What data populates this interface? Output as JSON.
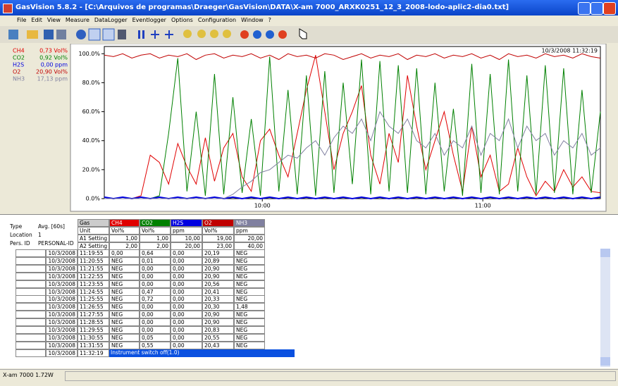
{
  "window": {
    "title": "GasVision 5.8.2 - [C:\\Arquivos de programas\\Draeger\\GasVision\\DATA\\X-am 7000_ARXK0251_12_3_2008-lodo-aplic2-dia0.txt]",
    "menu": [
      "File",
      "Edit",
      "View",
      "Measure",
      "DataLogger",
      "Eventlogger",
      "Options",
      "Configuration",
      "Window",
      "?"
    ],
    "status": "X-am 7000 1.72W"
  },
  "chart_data": {
    "type": "line",
    "timestamp": "10/3/2008 11:32:19",
    "x": [
      557,
      559.5,
      562,
      564.5,
      567,
      569.5,
      572,
      574.5,
      577,
      579.5,
      582,
      584.5,
      587,
      589.5,
      592,
      594.5,
      597,
      599.5,
      602,
      604.5,
      607,
      609.5,
      612,
      614.5,
      617,
      619.5,
      622,
      624.5,
      627,
      629.5,
      632,
      634.5,
      637,
      639.5,
      642,
      644.5,
      647,
      649.5,
      652,
      654.5,
      657,
      659.5,
      662,
      664.5,
      667,
      669.5,
      672,
      674.5,
      677,
      679.5,
      682,
      684.5,
      687,
      689.5,
      692
    ],
    "xlim": [
      557,
      692
    ],
    "xticks": [
      {
        "value": 600,
        "label": "10:00"
      },
      {
        "value": 660,
        "label": "11:00"
      }
    ],
    "ylim": [
      0,
      105
    ],
    "yticks": [
      {
        "value": 0,
        "label": "0.0%"
      },
      {
        "value": 20,
        "label": "20.0%"
      },
      {
        "value": 40,
        "label": "40.0%"
      },
      {
        "value": 60,
        "label": "60.0%"
      },
      {
        "value": 80,
        "label": "80.0%"
      },
      {
        "value": 100,
        "label": "100.0%"
      }
    ],
    "series": [
      {
        "name": "CH4",
        "reading": "0,73 Vol%",
        "color": "#e00000",
        "values": [
          0,
          0,
          0,
          0,
          2,
          30,
          25,
          10,
          38,
          22,
          10,
          42,
          12,
          35,
          45,
          15,
          5,
          40,
          48,
          30,
          15,
          45,
          75,
          99,
          60,
          20,
          45,
          60,
          78,
          30,
          10,
          45,
          25,
          85,
          50,
          20,
          40,
          60,
          30,
          5,
          50,
          15,
          30,
          5,
          10,
          35,
          15,
          2,
          12,
          5,
          20,
          8,
          15,
          5,
          4
        ]
      },
      {
        "name": "CO2",
        "reading": "0,92 Vol%",
        "color": "#008000",
        "values": [
          0,
          0,
          0,
          0,
          0,
          0,
          2,
          45,
          97,
          5,
          60,
          2,
          86,
          3,
          70,
          4,
          55,
          2,
          98,
          5,
          75,
          3,
          85,
          2,
          88,
          4,
          80,
          10,
          96,
          3,
          95,
          5,
          92,
          4,
          90,
          3,
          80,
          5,
          62,
          2,
          93,
          4,
          86,
          3,
          96,
          5,
          85,
          3,
          92,
          4,
          90,
          3,
          75,
          4,
          60
        ]
      },
      {
        "name": "H2S",
        "reading": "0,00 ppm",
        "color": "#0000e0",
        "values": [
          1,
          0,
          1,
          0,
          1,
          0,
          1,
          0,
          1,
          0,
          1,
          0,
          1,
          0,
          1,
          0,
          1,
          0,
          1,
          0,
          1,
          0,
          1,
          0,
          1,
          0,
          1,
          0,
          1,
          0,
          1,
          0,
          1,
          0,
          1,
          0,
          1,
          0,
          1,
          0,
          1,
          0,
          1,
          0,
          1,
          0,
          1,
          0,
          1,
          0,
          1,
          0,
          1,
          0,
          1
        ]
      },
      {
        "name": "O2",
        "reading": "20,90 Vol%",
        "color": "#c00000",
        "values": [
          99,
          98,
          100,
          97,
          99,
          100,
          97,
          99,
          98,
          100,
          96,
          99,
          100,
          97,
          99,
          98,
          100,
          97,
          99,
          96,
          100,
          98,
          99,
          97,
          100,
          99,
          96,
          98,
          100,
          97,
          99,
          98,
          100,
          96,
          99,
          98,
          100,
          97,
          99,
          98,
          100,
          97,
          99,
          96,
          100,
          98,
          99,
          97,
          100,
          98,
          99,
          97,
          100,
          98,
          97
        ]
      },
      {
        "name": "NH3",
        "reading": "17,13 ppm",
        "color": "#8080a0",
        "values": [
          0,
          0,
          0,
          0,
          0,
          0,
          0,
          0,
          0,
          0,
          0,
          0,
          0,
          0,
          3,
          8,
          12,
          18,
          20,
          25,
          30,
          28,
          35,
          40,
          30,
          42,
          50,
          45,
          55,
          40,
          60,
          50,
          45,
          55,
          40,
          35,
          45,
          30,
          40,
          35,
          50,
          30,
          45,
          40,
          55,
          35,
          50,
          40,
          45,
          30,
          40,
          35,
          45,
          30,
          35
        ]
      }
    ]
  },
  "info": [
    [
      "Type",
      "Avg. [60s]"
    ],
    [
      "Location",
      "1"
    ],
    [
      "Pers. ID",
      "PERSONAL-ID"
    ]
  ],
  "settings": [
    [
      "Gas",
      "CH4",
      "CO2",
      "H2S",
      "O2",
      "NH3"
    ],
    [
      "Unit",
      "Vol%",
      "Vol%",
      "ppm",
      "Vol%",
      "ppm"
    ],
    [
      "A1 Setting",
      "1,00",
      "1,00",
      "10,00",
      "19,00",
      "20,00"
    ],
    [
      "A2 Setting",
      "2,00",
      "2,00",
      "20,00",
      "23,00",
      "40,00"
    ]
  ],
  "log": {
    "rows": [
      [
        "10/3/2008",
        "11:19:55",
        "0,00",
        "0,64",
        "0,00",
        "20,19",
        "NEG"
      ],
      [
        "10/3/2008",
        "11:20:55",
        "NEG",
        "0,01",
        "0,00",
        "20,89",
        "NEG"
      ],
      [
        "10/3/2008",
        "11:21:55",
        "NEG",
        "0,00",
        "0,00",
        "20,90",
        "NEG"
      ],
      [
        "10/3/2008",
        "11:22:55",
        "NEG",
        "0,00",
        "0,00",
        "20,90",
        "NEG"
      ],
      [
        "10/3/2008",
        "11:23:55",
        "NEG",
        "0,00",
        "0,00",
        "20,56",
        "NEG"
      ],
      [
        "10/3/2008",
        "11:24:55",
        "NEG",
        "0,47",
        "0,00",
        "20,41",
        "NEG"
      ],
      [
        "10/3/2008",
        "11:25:55",
        "NEG",
        "0,72",
        "0,00",
        "20,33",
        "NEG"
      ],
      [
        "10/3/2008",
        "11:26:55",
        "NEG",
        "0,00",
        "0,00",
        "20,30",
        "1,48"
      ],
      [
        "10/3/2008",
        "11:27:55",
        "NEG",
        "0,00",
        "0,00",
        "20,90",
        "NEG"
      ],
      [
        "10/3/2008",
        "11:28:55",
        "NEG",
        "0,00",
        "0,00",
        "20,90",
        "NEG"
      ],
      [
        "10/3/2008",
        "11:29:55",
        "NEG",
        "0,00",
        "0,00",
        "20,83",
        "NEG"
      ],
      [
        "10/3/2008",
        "11:30:55",
        "NEG",
        "0,05",
        "0,00",
        "20,55",
        "NEG"
      ],
      [
        "10/3/2008",
        "11:31:55",
        "NEG",
        "0,55",
        "0,00",
        "20,43",
        "NEG"
      ]
    ],
    "last": [
      "10/3/2008",
      "11:32:19",
      "Instrument switch off(1.0)"
    ]
  }
}
